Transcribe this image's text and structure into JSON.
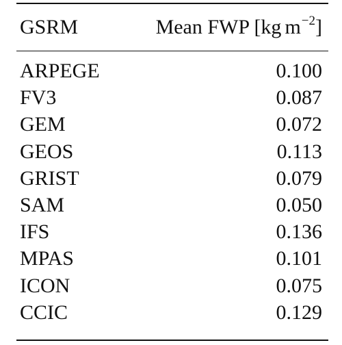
{
  "table": {
    "headers": {
      "model": "GSRM",
      "value_prefix": "Mean FWP [kg",
      "value_unit": "m",
      "value_exponent": "−2",
      "value_suffix": "]"
    },
    "rows": [
      {
        "model": "ARPEGE",
        "mean_fwp": "0.100"
      },
      {
        "model": "FV3",
        "mean_fwp": "0.087"
      },
      {
        "model": "GEM",
        "mean_fwp": "0.072"
      },
      {
        "model": "GEOS",
        "mean_fwp": "0.113"
      },
      {
        "model": "GRIST",
        "mean_fwp": "0.079"
      },
      {
        "model": "SAM",
        "mean_fwp": "0.050"
      },
      {
        "model": "IFS",
        "mean_fwp": "0.136"
      },
      {
        "model": "MPAS",
        "mean_fwp": "0.101"
      },
      {
        "model": "ICON",
        "mean_fwp": "0.075"
      },
      {
        "model": "CCIC",
        "mean_fwp": "0.129"
      }
    ]
  }
}
